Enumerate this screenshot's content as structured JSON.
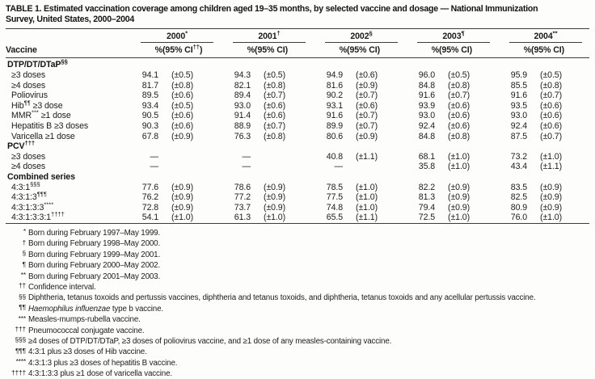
{
  "title": {
    "line1": "TABLE 1. Estimated vaccination coverage among children aged 19–35 months, by selected vaccine and dosage — National Immunization",
    "line2": "Survey, United States, 2000–2004"
  },
  "table": {
    "vaccine_header": "Vaccine",
    "year_groups": [
      {
        "year": "2000",
        "marker": "*",
        "pct": "%",
        "ci_pre": "(95% CI",
        "ci_sup": "††",
        "ci_post": ")"
      },
      {
        "year": "2001",
        "marker": "†",
        "pct": "%",
        "ci_pre": "(95% CI)",
        "ci_sup": "",
        "ci_post": ""
      },
      {
        "year": "2002",
        "marker": "§",
        "pct": "%",
        "ci_pre": "(95% CI)",
        "ci_sup": "",
        "ci_post": ""
      },
      {
        "year": "2003",
        "marker": "¶",
        "pct": "%",
        "ci_pre": "(95% CI)",
        "ci_sup": "",
        "ci_post": ""
      },
      {
        "year": "2004",
        "marker": "**",
        "pct": "%",
        "ci_pre": "(95% CI)",
        "ci_sup": "",
        "ci_post": ""
      }
    ],
    "sections": [
      {
        "header": {
          "pre": "DTP/DT/DTaP",
          "sup": "§§"
        },
        "rows": [
          {
            "label": {
              "pre": "≥3 doses"
            },
            "cells": [
              [
                "94.1",
                "(±0.5)"
              ],
              [
                "94.3",
                "(±0.5)"
              ],
              [
                "94.9",
                "(±0.6)"
              ],
              [
                "96.0",
                "(±0.5)"
              ],
              [
                "95.9",
                "(±0.5)"
              ]
            ]
          },
          {
            "label": {
              "pre": "≥4 doses"
            },
            "cells": [
              [
                "81.7",
                "(±0.8)"
              ],
              [
                "82.1",
                "(±0.8)"
              ],
              [
                "81.6",
                "(±0.9)"
              ],
              [
                "84.8",
                "(±0.8)"
              ],
              [
                "85.5",
                "(±0.8)"
              ]
            ]
          },
          {
            "label": {
              "pre": "Poliovirus"
            },
            "cells": [
              [
                "89.5",
                "(±0.6)"
              ],
              [
                "89.4",
                "(±0.7)"
              ],
              [
                "90.2",
                "(±0.7)"
              ],
              [
                "91.6",
                "(±0.7)"
              ],
              [
                "91.6",
                "(±0.7)"
              ]
            ]
          },
          {
            "label": {
              "pre": "Hib",
              "sup": "¶¶",
              "post": " ≥3 dose"
            },
            "cells": [
              [
                "93.4",
                "(±0.5)"
              ],
              [
                "93.0",
                "(±0.6)"
              ],
              [
                "93.1",
                "(±0.6)"
              ],
              [
                "93.9",
                "(±0.6)"
              ],
              [
                "93.5",
                "(±0.6)"
              ]
            ]
          },
          {
            "label": {
              "pre": "MMR",
              "sup": "***",
              "post": " ≥1 dose"
            },
            "cells": [
              [
                "90.5",
                "(±0.6)"
              ],
              [
                "91.4",
                "(±0.6)"
              ],
              [
                "91.6",
                "(±0.7)"
              ],
              [
                "93.0",
                "(±0.6)"
              ],
              [
                "93.0",
                "(±0.6)"
              ]
            ]
          },
          {
            "label": {
              "pre": "Hepatitis B ≥3 doses"
            },
            "cells": [
              [
                "90.3",
                "(±0.6)"
              ],
              [
                "88.9",
                "(±0.7)"
              ],
              [
                "89.9",
                "(±0.7)"
              ],
              [
                "92.4",
                "(±0.6)"
              ],
              [
                "92.4",
                "(±0.6)"
              ]
            ]
          },
          {
            "label": {
              "pre": "Varicella ≥1 dose"
            },
            "cells": [
              [
                "67.8",
                "(±0.9)"
              ],
              [
                "76.3",
                "(±0.8)"
              ],
              [
                "80.6",
                "(±0.9)"
              ],
              [
                "84.8",
                "(±0.8)"
              ],
              [
                "87.5",
                "(±0.7)"
              ]
            ]
          }
        ]
      },
      {
        "header": {
          "pre": "PCV",
          "sup": "†††"
        },
        "rows": [
          {
            "label": {
              "pre": "≥3 doses"
            },
            "cells": [
              [
                "—",
                ""
              ],
              [
                "—",
                ""
              ],
              [
                "40.8",
                "(±1.1)"
              ],
              [
                "68.1",
                "(±1.0)"
              ],
              [
                "73.2",
                "(±1.0)"
              ]
            ]
          },
          {
            "label": {
              "pre": "≥4 doses"
            },
            "cells": [
              [
                "—",
                ""
              ],
              [
                "—",
                ""
              ],
              [
                "—",
                ""
              ],
              [
                "35.8",
                "(±1.0)"
              ],
              [
                "43.4",
                "(±1.1)"
              ]
            ]
          }
        ]
      },
      {
        "header": {
          "pre": "Combined series"
        },
        "rows": [
          {
            "label": {
              "pre": "4:3:1",
              "sup": "§§§"
            },
            "cells": [
              [
                "77.6",
                "(±0.9)"
              ],
              [
                "78.6",
                "(±0.9)"
              ],
              [
                "78.5",
                "(±1.0)"
              ],
              [
                "82.2",
                "(±0.9)"
              ],
              [
                "83.5",
                "(±0.9)"
              ]
            ]
          },
          {
            "label": {
              "pre": "4:3:1:3",
              "sup": "¶¶¶"
            },
            "cells": [
              [
                "76.2",
                "(±0.9)"
              ],
              [
                "77.2",
                "(±0.9)"
              ],
              [
                "77.5",
                "(±1.0)"
              ],
              [
                "81.3",
                "(±0.9)"
              ],
              [
                "82.5",
                "(±0.9)"
              ]
            ]
          },
          {
            "label": {
              "pre": "4:3:1:3:3",
              "sup": "****"
            },
            "cells": [
              [
                "72.8",
                "(±0.9)"
              ],
              [
                "73.7",
                "(±0.9)"
              ],
              [
                "74.8",
                "(±1.0)"
              ],
              [
                "79.4",
                "(±0.9)"
              ],
              [
                "80.9",
                "(±0.9)"
              ]
            ]
          },
          {
            "label": {
              "pre": "4:3:1:3:3:1",
              "sup": "††††"
            },
            "cells": [
              [
                "54.1",
                "(±1.0)"
              ],
              [
                "61.3",
                "(±1.0)"
              ],
              [
                "65.5",
                "(±1.1)"
              ],
              [
                "72.5",
                "(±1.0)"
              ],
              [
                "76.0",
                "(±1.0)"
              ]
            ]
          }
        ]
      }
    ]
  },
  "footnotes": [
    {
      "marker": "*",
      "text": "Born during February 1997–May 1999."
    },
    {
      "marker": "†",
      "text": "Born during February 1998–May 2000."
    },
    {
      "marker": "§",
      "text": "Born during February 1999–May 2001."
    },
    {
      "marker": "¶",
      "text": "Born during February 2000–May 2002."
    },
    {
      "marker": "**",
      "text": "Born during February 2001–May 2003."
    },
    {
      "marker": "††",
      "text": "Confidence interval."
    },
    {
      "marker": "§§",
      "text": "Diphtheria, tetanus toxoids and pertussis vaccines, diphtheria and tetanus toxoids, and diphtheria, tetanus toxoids and any acellular pertussis vaccine."
    },
    {
      "marker": "¶¶",
      "italic": "Haemophilus influenzae",
      "text": " type b vaccine."
    },
    {
      "marker": "***",
      "text": "Measles-mumps-rubella vaccine."
    },
    {
      "marker": "†††",
      "text": "Pneumococcal conjugate vaccine."
    },
    {
      "marker": "§§§",
      "text": "≥4 doses of DTP/DT/DTaP, ≥3 doses of poliovirus vaccine, and ≥1 dose of any measles-containing vaccine."
    },
    {
      "marker": "¶¶¶",
      "text": "4:3:1 plus ≥3 doses of Hib vaccine."
    },
    {
      "marker": "****",
      "text": "4:3:1:3 plus ≥3 doses of hepatitis B vaccine."
    },
    {
      "marker": "††††",
      "text": "4:3:1:3:3 plus ≥1 dose of varicella vaccine."
    }
  ]
}
